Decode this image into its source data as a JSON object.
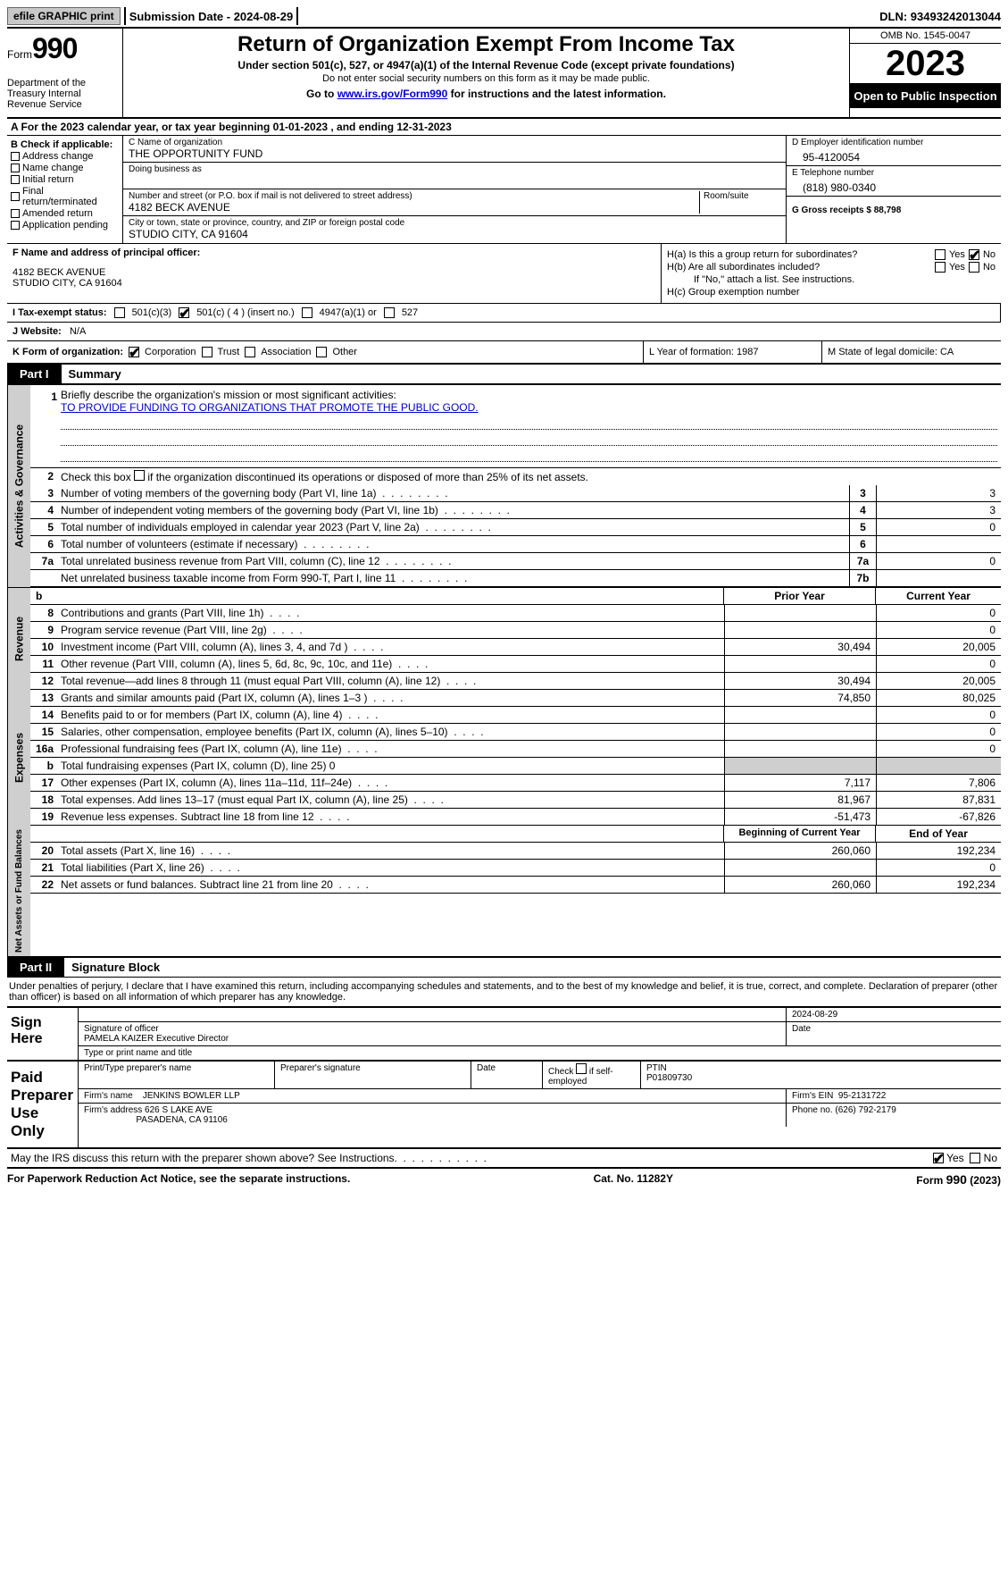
{
  "topbar": {
    "efile": "efile GRAPHIC print",
    "submission": "Submission Date - 2024-08-29",
    "dln": "DLN: 93493242013044"
  },
  "header": {
    "form_label": "Form",
    "form_num": "990",
    "dept": "Department of the Treasury Internal Revenue Service",
    "title": "Return of Organization Exempt From Income Tax",
    "subtitle": "Under section 501(c), 527, or 4947(a)(1) of the Internal Revenue Code (except private foundations)",
    "subtitle2": "Do not enter social security numbers on this form as it may be made public.",
    "goto_pre": "Go to ",
    "goto_link": "www.irs.gov/Form990",
    "goto_post": " for instructions and the latest information.",
    "omb": "OMB No. 1545-0047",
    "year": "2023",
    "inspection": "Open to Public Inspection"
  },
  "row_a": "A For the 2023 calendar year, or tax year beginning 01-01-2023    , and ending 12-31-2023",
  "col_b": {
    "title": "B Check if applicable:",
    "items": [
      "Address change",
      "Name change",
      "Initial return",
      "Final return/terminated",
      "Amended return",
      "Application pending"
    ]
  },
  "col_c": {
    "name_lbl": "C Name of organization",
    "name_val": "THE OPPORTUNITY FUND",
    "dba_lbl": "Doing business as",
    "addr_lbl": "Number and street (or P.O. box if mail is not delivered to street address)",
    "room_lbl": "Room/suite",
    "addr_val": "4182 BECK AVENUE",
    "city_lbl": "City or town, state or province, country, and ZIP or foreign postal code",
    "city_val": "STUDIO CITY, CA  91604"
  },
  "col_de": {
    "d_lbl": "D Employer identification number",
    "d_val": "95-4120054",
    "e_lbl": "E Telephone number",
    "e_val": "(818) 980-0340",
    "g_lbl": "G Gross receipts $ 88,798"
  },
  "f_block": {
    "lbl": "F  Name and address of principal officer:",
    "addr1": "4182 BECK AVENUE",
    "addr2": "STUDIO CITY, CA  91604"
  },
  "h_block": {
    "ha": "H(a)  Is this a group return for subordinates?",
    "hb": "H(b)  Are all subordinates included?",
    "hb_note": "If \"No,\" attach a list. See instructions.",
    "hc": "H(c)  Group exemption number",
    "yes": "Yes",
    "no": "No"
  },
  "i_row": {
    "lbl": "I    Tax-exempt status:",
    "o1": "501(c)(3)",
    "o2": "501(c) ( 4 ) (insert no.)",
    "o3": "4947(a)(1) or",
    "o4": "527"
  },
  "j_row": {
    "lbl": "J    Website:",
    "val": "N/A"
  },
  "k_row": {
    "lbl": "K Form of organization:",
    "o1": "Corporation",
    "o2": "Trust",
    "o3": "Association",
    "o4": "Other"
  },
  "l_row": "L Year of formation: 1987",
  "m_row": "M State of legal domicile: CA",
  "part1": {
    "hdr": "Part I",
    "title": "Summary"
  },
  "mission": {
    "n": "1",
    "lbl": "Briefly describe the organization's mission or most significant activities:",
    "val": "TO PROVIDE FUNDING TO ORGANIZATIONS THAT PROMOTE THE PUBLIC GOOD."
  },
  "line2": {
    "n": "2",
    "t": "Check this box      if the organization discontinued its operations or disposed of more than 25% of its net assets."
  },
  "gov_lines": [
    {
      "n": "3",
      "t": "Number of voting members of the governing body (Part VI, line 1a)",
      "box": "3",
      "v": "3"
    },
    {
      "n": "4",
      "t": "Number of independent voting members of the governing body (Part VI, line 1b)",
      "box": "4",
      "v": "3"
    },
    {
      "n": "5",
      "t": "Total number of individuals employed in calendar year 2023 (Part V, line 2a)",
      "box": "5",
      "v": "0"
    },
    {
      "n": "6",
      "t": "Total number of volunteers (estimate if necessary)",
      "box": "6",
      "v": ""
    },
    {
      "n": "7a",
      "t": "Total unrelated business revenue from Part VIII, column (C), line 12",
      "box": "7a",
      "v": "0"
    },
    {
      "n": "",
      "t": "Net unrelated business taxable income from Form 990-T, Part I, line 11",
      "box": "7b",
      "v": ""
    }
  ],
  "rev_hdr": {
    "b": "b",
    "prior": "Prior Year",
    "current": "Current Year"
  },
  "rev_lines": [
    {
      "n": "8",
      "t": "Contributions and grants (Part VIII, line 1h)",
      "c1": "",
      "c2": "0"
    },
    {
      "n": "9",
      "t": "Program service revenue (Part VIII, line 2g)",
      "c1": "",
      "c2": "0"
    },
    {
      "n": "10",
      "t": "Investment income (Part VIII, column (A), lines 3, 4, and 7d )",
      "c1": "30,494",
      "c2": "20,005"
    },
    {
      "n": "11",
      "t": "Other revenue (Part VIII, column (A), lines 5, 6d, 8c, 9c, 10c, and 11e)",
      "c1": "",
      "c2": "0"
    },
    {
      "n": "12",
      "t": "Total revenue—add lines 8 through 11 (must equal Part VIII, column (A), line 12)",
      "c1": "30,494",
      "c2": "20,005"
    }
  ],
  "exp_lines": [
    {
      "n": "13",
      "t": "Grants and similar amounts paid (Part IX, column (A), lines 1–3 )",
      "c1": "74,850",
      "c2": "80,025"
    },
    {
      "n": "14",
      "t": "Benefits paid to or for members (Part IX, column (A), line 4)",
      "c1": "",
      "c2": "0"
    },
    {
      "n": "15",
      "t": "Salaries, other compensation, employee benefits (Part IX, column (A), lines 5–10)",
      "c1": "",
      "c2": "0"
    },
    {
      "n": "16a",
      "t": "Professional fundraising fees (Part IX, column (A), line 11e)",
      "c1": "",
      "c2": "0"
    },
    {
      "n": "b",
      "t": "Total fundraising expenses (Part IX, column (D), line 25) 0",
      "c1": "shade",
      "c2": "shade"
    },
    {
      "n": "17",
      "t": "Other expenses (Part IX, column (A), lines 11a–11d, 11f–24e)",
      "c1": "7,117",
      "c2": "7,806"
    },
    {
      "n": "18",
      "t": "Total expenses. Add lines 13–17 (must equal Part IX, column (A), line 25)",
      "c1": "81,967",
      "c2": "87,831"
    },
    {
      "n": "19",
      "t": "Revenue less expenses. Subtract line 18 from line 12",
      "c1": "-51,473",
      "c2": "-67,826"
    }
  ],
  "net_hdr": {
    "prior": "Beginning of Current Year",
    "current": "End of Year"
  },
  "net_lines": [
    {
      "n": "20",
      "t": "Total assets (Part X, line 16)",
      "c1": "260,060",
      "c2": "192,234"
    },
    {
      "n": "21",
      "t": "Total liabilities (Part X, line 26)",
      "c1": "",
      "c2": "0"
    },
    {
      "n": "22",
      "t": "Net assets or fund balances. Subtract line 21 from line 20",
      "c1": "260,060",
      "c2": "192,234"
    }
  ],
  "vtabs": {
    "gov": "Activities & Governance",
    "rev": "Revenue",
    "exp": "Expenses",
    "net": "Net Assets or Fund Balances"
  },
  "part2": {
    "hdr": "Part II",
    "title": "Signature Block"
  },
  "sig_intro": "Under penalties of perjury, I declare that I have examined this return, including accompanying schedules and statements, and to the best of my knowledge and belief, it is true, correct, and complete. Declaration of preparer (other than officer) is based on all information of which preparer has any knowledge.",
  "sign_here": "Sign Here",
  "sig": {
    "date": "2024-08-29",
    "sig_lbl": "Signature of officer",
    "date_lbl": "Date",
    "name": "PAMELA KAIZER  Executive Director",
    "name_lbl": "Type or print name and title"
  },
  "paid": {
    "title": "Paid Preparer Use Only",
    "h1": "Print/Type preparer's name",
    "h2": "Preparer's signature",
    "h3": "Date",
    "h4_pre": "Check",
    "h4_post": "if self-employed",
    "h5": "PTIN",
    "ptin": "P01809730",
    "firm_lbl": "Firm's name",
    "firm": "JENKINS BOWLER LLP",
    "ein_lbl": "Firm's EIN",
    "ein": "95-2131722",
    "addr_lbl": "Firm's address",
    "addr1": "626 S LAKE AVE",
    "addr2": "PASADENA, CA  91106",
    "phone_lbl": "Phone no.",
    "phone": "(626) 792-2179"
  },
  "discuss": {
    "q": "May the IRS discuss this return with the preparer shown above? See Instructions.",
    "yes": "Yes",
    "no": "No"
  },
  "footer": {
    "l": "For Paperwork Reduction Act Notice, see the separate instructions.",
    "c": "Cat. No. 11282Y",
    "r": "Form 990 (2023)"
  }
}
